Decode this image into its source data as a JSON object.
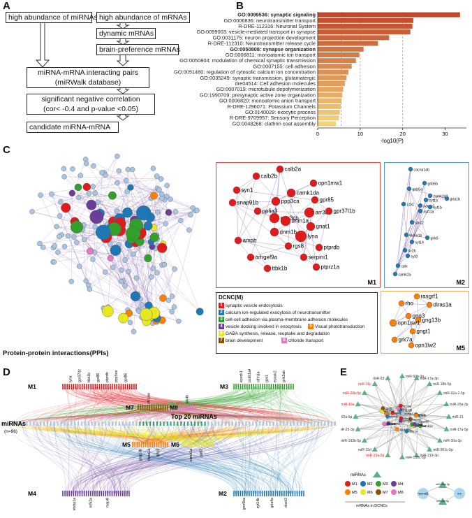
{
  "panels": {
    "a": "A",
    "b": "B",
    "c": "C",
    "d": "D",
    "e": "E"
  },
  "flow": {
    "box1": "high abundance of miRNAs",
    "box2": "high abundance of mRNAs",
    "box3": "dynamic mRNAs",
    "box4": "brain-preference mRNAs",
    "box5_line1": "miRNA-mRNA interacting pairs",
    "box5_line2": "(miRWalk database)",
    "box6_line1": "significant negative correlation",
    "box6_line2": "(cor< -0.4 and p-value <0.05)",
    "box7": "candidate miRNA-mRNA"
  },
  "chart_data": {
    "type": "bar",
    "orientation": "horizontal",
    "categories": [
      "GO:0099536: synaptic signaling",
      "GO:0006836: neurotransmitter transport",
      "R-DRE-112316: Neuronal System",
      "GO:0099003: vesicle-mediated transport in synapse",
      "GO:0031175: neuron projection development",
      "R-DRE-112310: Neurotransmitter release cycle",
      "GO:0050808: synapse organization",
      "GO:0006811: monoatomic ion transport",
      "GO:0050804: modulation of chemical synaptic transmission",
      "GO:0007155: cell adhesion",
      "GO:0051480: regulation of cytosolic calcium ion concentration",
      "GO:0035249: synaptic transmission, glutamatergic",
      "dre04514: Cell adhesion molecules",
      "GO:0007019: microtubule depolymerization",
      "GO:1990709: presynaptic active zone organization",
      "GO:0006820: monoatomic anion transport",
      "R-DRE-1296071: Potassium Channels",
      "GO:0140029: exocytic process",
      "R-DRE-9709957: Sensory Perception",
      "GO:0048268: clathrin coat assembly"
    ],
    "bold_categories": [
      "GO:0099536: synaptic signaling",
      "GO:0050808: synapse organization"
    ],
    "values": [
      33.5,
      22.5,
      22.3,
      21.8,
      16.8,
      14.2,
      10.8,
      9.8,
      9.0,
      8.0,
      7.2,
      6.8,
      6.4,
      6.0,
      5.8,
      5.6,
      5.4,
      5.2,
      5.0,
      4.3
    ],
    "xlabel": "-log10(P)",
    "xlim": [
      0,
      35
    ],
    "xticks": [
      "0",
      "10",
      "20",
      "30"
    ],
    "ref_lines": [
      5.5,
      10,
      20
    ]
  },
  "ppi": {
    "caption": "Protein-protein interactions(PPIs)",
    "m1": {
      "label": "M1",
      "genes": [
        "calb2a",
        "calb2b",
        "syn1",
        "opn1mw1",
        "camk1da",
        "gpr85",
        "snap91b",
        "ppp3ca",
        "arr3a",
        "gpr37l1b",
        "ppfia3",
        "ppp3cb",
        "dnm1a",
        "gnat1",
        "dnm1b",
        "lyna",
        "ptprdb",
        "amph",
        "rgs8",
        "serpini1",
        "arhgef9a",
        "ptprz1a",
        "ttbk1b"
      ]
    },
    "m2": {
      "label": "M2",
      "genes": [
        "cacna1ab",
        "gnb5b",
        "gnb5a",
        "camk2d2",
        "gria1b",
        "LOC",
        "vamp2",
        "syt1a",
        "syt1b",
        "syt11a",
        "stx12",
        "slc6a1b",
        "syt14",
        "sv2b",
        "syt3",
        "cplx",
        "camk2a",
        "grik5"
      ]
    },
    "m5": {
      "label": "M5",
      "genes": [
        "rasgrf1",
        "rho",
        "diras1a",
        "gng3",
        "gng13b",
        "opn1sw1",
        "gngt1",
        "grk7a",
        "opn1lw2"
      ]
    },
    "legend_title": "DCNC(M)",
    "legend": [
      {
        "n": "1",
        "text": "synaptic vesicle endocytosis",
        "color": "#e31a1c"
      },
      {
        "n": "2",
        "text": "calcium ion-regulated exocytosis of neurotransmitter",
        "color": "#1f78b4"
      },
      {
        "n": "3",
        "text": "cell-cell adhesion via plasma-membrane adhesion molecules",
        "color": "#33a02c"
      },
      {
        "n": "4",
        "text": "vesicle docking involved in exocytosis",
        "color": "#6a3d9a"
      },
      {
        "n": "5",
        "text": "Visual phototransduction",
        "color": "#ff7f00"
      },
      {
        "n": "6",
        "text": "GABA synthesis, release, reuptake and degradation",
        "color": "#e8e820"
      },
      {
        "n": "7",
        "text": "brain development",
        "color": "#8c510a"
      },
      {
        "n": "8",
        "text": "chloride transport",
        "color": "#e377c2"
      }
    ]
  },
  "hive": {
    "m1": "M1",
    "m2": "M2",
    "m3": "M3",
    "m4": "M4",
    "m5": "M5",
    "m6": "M6",
    "m7": "M7",
    "m8": "M8",
    "mirnas": "miRNAs",
    "mirna_count": "(n=96)",
    "top20": "Top 20  miRNAs",
    "m1_genes": [
      "lyna",
      "gpr37l1b",
      "ttbk1b",
      "gpr85",
      "ptprdb",
      "ppp3ca",
      "gpr85"
    ],
    "m3_genes": [
      "epock1",
      "pcdh1a4",
      "olfm1a",
      "gpc1",
      "epock2",
      "grik2ab"
    ],
    "m7_gene": "rtn1aa",
    "m8_gene": "slc4b",
    "m5_genes": [
      "gng13b",
      "diras1a",
      "gng3"
    ],
    "m6_genes": [
      "camk1a",
      "gad2"
    ],
    "m4_genes": [
      "stxbp1a",
      "nrfk2a",
      "map4l"
    ],
    "m2_genes": [
      "gnn5ba",
      "syt14b",
      "gria4a",
      "dock3"
    ]
  },
  "network": {
    "mirnas": [
      "miR-92b-3p",
      "miR-17a-3p",
      "miR-18b-5p",
      "miR-92a-2-5p",
      "miR-20a-3p",
      "miR-21",
      "miR-17a-5p",
      "miR-30a-3p",
      "miR-301c-5p",
      "miR-219-3p",
      "miR-130c-5p",
      "miR-20a-5p",
      "miR-15d",
      "miR-193b-5p",
      "miR-25-3p",
      "miR-92a-5p",
      "miR-16a",
      "miR-20b-5p",
      "miR-16c",
      "miR-93"
    ],
    "red_mirnas": [
      "miR-20a-5p",
      "miR-16a",
      "miR-20b-5p",
      "miR-16c"
    ],
    "inner_genes": [
      "nsx1a",
      "gng13b",
      "syt1a",
      "epock3",
      "ppp3ca",
      "pcdh1a4",
      "vamp2",
      "gad2",
      "epock2",
      "stxbp1a",
      "ptprdb",
      "camk1a",
      "dnm1a",
      "opn1mw1",
      "serpini1",
      "gpr85",
      "grik2ab",
      "ppfia3",
      "rtn1aa",
      "olfm1a",
      "syt14b",
      "gng3",
      "gria4a"
    ],
    "legend_mirna": "miRNAs",
    "legend_mods": [
      "M1",
      "M2",
      "M3",
      "M4",
      "M5",
      "M6",
      "M7",
      "M8"
    ],
    "legend_mrna": "mRNAs in DCNCs",
    "small_mirnas": [
      "miR-93a-3p",
      "miR-20-3p"
    ],
    "small_genes": [
      "neurod1",
      "crx"
    ]
  },
  "colors": {
    "bar_dark": "#c0482a",
    "bar_light": "#f6d277",
    "m1": "#e31a1c",
    "m2": "#1f78b4",
    "m3": "#33a02c",
    "m4": "#6a3d9a",
    "m5": "#ff7f00",
    "m6": "#e8e820",
    "m7": "#8c510a",
    "m8": "#e377c2",
    "mirna": "#5fae8a",
    "node_default": "#a9c4e4"
  }
}
